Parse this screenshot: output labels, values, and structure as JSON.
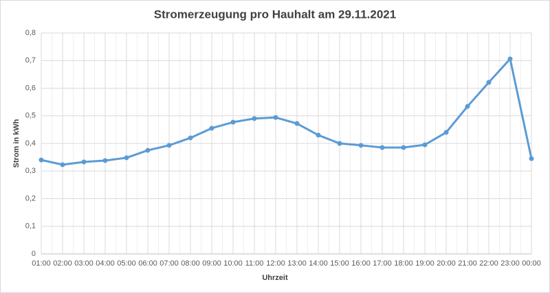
{
  "chart_data": {
    "type": "line",
    "title": "Stromerzeugung pro Hauhalt am 29.11.2021",
    "x_label": "Uhrzeit",
    "y_label": "Strom in kWh",
    "categories": [
      "01:00",
      "02:00",
      "03:00",
      "04:00",
      "05:00",
      "06:00",
      "07:00",
      "08:00",
      "09:00",
      "10:00",
      "11:00",
      "12:00",
      "13:00",
      "14:00",
      "15:00",
      "16:00",
      "17:00",
      "18:00",
      "19:00",
      "20:00",
      "21:00",
      "22:00",
      "23:00",
      "00:00"
    ],
    "series": [
      {
        "name": "Strom",
        "color": "#5b9bd5",
        "values": [
          0.34,
          0.323,
          0.333,
          0.338,
          0.348,
          0.375,
          0.393,
          0.42,
          0.455,
          0.477,
          0.49,
          0.494,
          0.472,
          0.43,
          0.4,
          0.393,
          0.385,
          0.385,
          0.395,
          0.44,
          0.534,
          0.621,
          0.706,
          0.345
        ]
      }
    ],
    "ylim": [
      0,
      0.8
    ],
    "yticks": [
      0,
      {
        "value": 0.1,
        "label": "0,1"
      },
      {
        "value": 0.2,
        "label": "0,2"
      },
      {
        "value": 0.3,
        "label": "0,3"
      },
      {
        "value": 0.4,
        "label": "0,4"
      },
      {
        "value": 0.5,
        "label": "0,5"
      },
      {
        "value": 0.6,
        "label": "0,6"
      },
      {
        "value": 0.7,
        "label": "0,7"
      },
      {
        "value": 0.8,
        "label": "0,8"
      }
    ],
    "grid": true
  }
}
